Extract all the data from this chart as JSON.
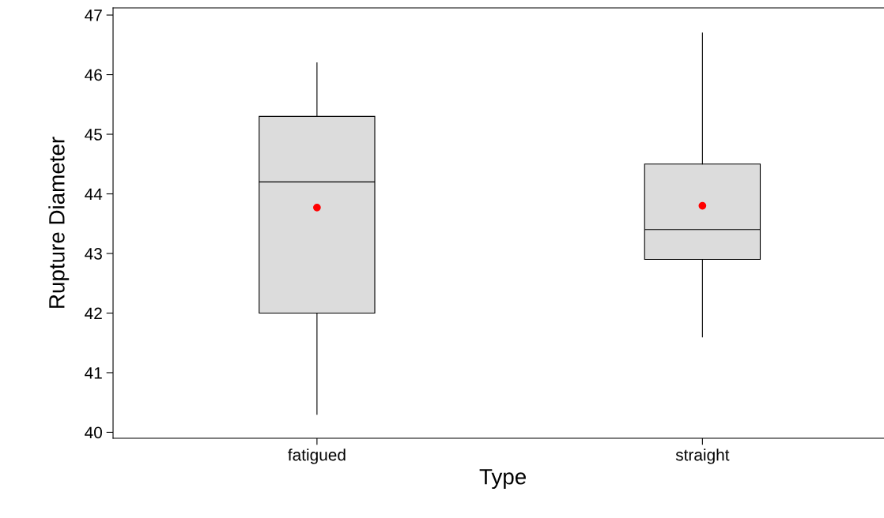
{
  "chart_data": {
    "type": "box",
    "xlabel": "Type",
    "ylabel": "Rupture Diameter",
    "categories": [
      "fatigued",
      "straight"
    ],
    "boxes": [
      {
        "low": 40.3,
        "q1": 42.0,
        "median": 44.2,
        "q3": 45.3,
        "high": 46.2,
        "mean": 43.77
      },
      {
        "low": 41.6,
        "q1": 42.9,
        "median": 43.4,
        "q3": 44.5,
        "high": 46.7,
        "mean": 43.8
      }
    ],
    "color": "#dcdcdc",
    "ylim": [
      39.9,
      47.12
    ],
    "yticks": [
      40,
      41,
      42,
      43,
      44,
      45,
      46,
      47
    ],
    "grid": false
  }
}
